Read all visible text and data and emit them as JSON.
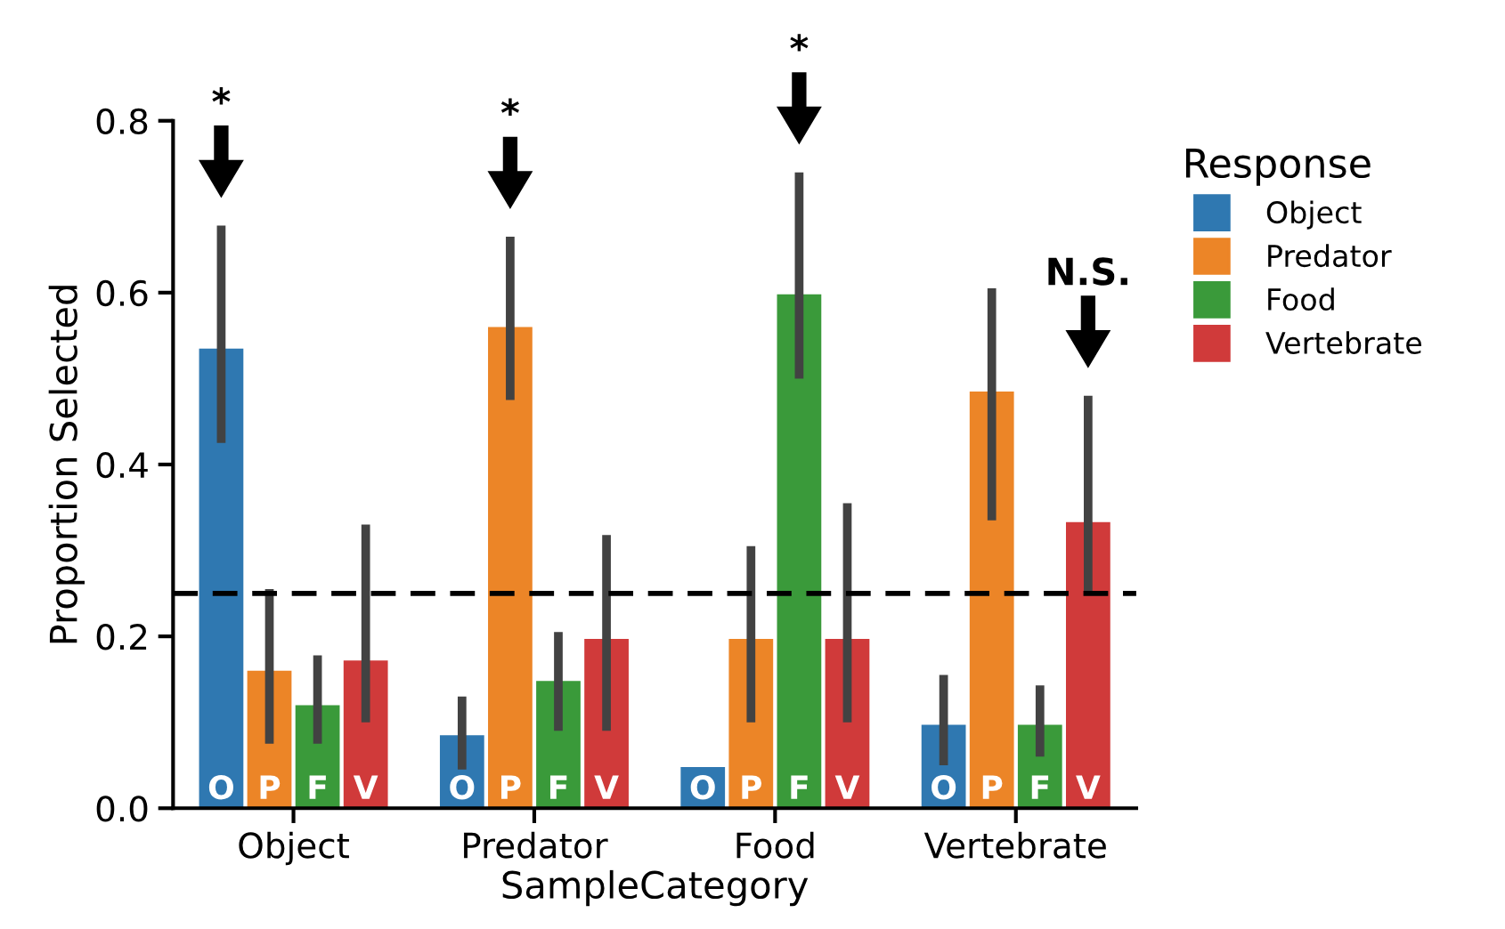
{
  "chart_data": {
    "type": "bar",
    "xlabel": "SampleCategory",
    "ylabel": "Proportion Selected",
    "legend_title": "Response",
    "legend": "right",
    "categories": [
      "Object",
      "Predator",
      "Food",
      "Vertebrate"
    ],
    "series": [
      {
        "name": "Object",
        "color": "#2f78b1",
        "values": [
          0.535,
          0.085,
          0.048,
          0.097
        ],
        "errors": [
          [
            0.425,
            0.678
          ],
          [
            0.045,
            0.13
          ],
          null,
          [
            0.05,
            0.155
          ]
        ],
        "value_labels": [
          "O",
          "O",
          "O",
          "O"
        ]
      },
      {
        "name": "Predator",
        "color": "#ec8527",
        "values": [
          0.16,
          0.56,
          0.197,
          0.485
        ],
        "errors": [
          [
            0.075,
            0.255
          ],
          [
            0.475,
            0.665
          ],
          [
            0.1,
            0.305
          ],
          [
            0.335,
            0.605
          ]
        ],
        "value_labels": [
          "P",
          "P",
          "P",
          "P"
        ]
      },
      {
        "name": "Food",
        "color": "#3a9a3a",
        "values": [
          0.12,
          0.148,
          0.598,
          0.097
        ],
        "errors": [
          [
            0.075,
            0.178
          ],
          [
            0.09,
            0.205
          ],
          [
            0.5,
            0.74
          ],
          [
            0.06,
            0.143
          ]
        ],
        "value_labels": [
          "F",
          "F",
          "F",
          "F"
        ]
      },
      {
        "name": "Vertebrate",
        "color": "#d03a3a",
        "values": [
          0.172,
          0.197,
          0.197,
          0.333
        ],
        "errors": [
          [
            0.1,
            0.33
          ],
          [
            0.09,
            0.318
          ],
          [
            0.1,
            0.355
          ],
          [
            0.25,
            0.48
          ]
        ],
        "value_labels": [
          "V",
          "V",
          "V",
          "V"
        ]
      }
    ],
    "ylim": [
      0,
      0.8
    ],
    "yticks": [
      {
        "value": 0,
        "label": "0.0"
      },
      0.2,
      0.4,
      0.6,
      0.8
    ],
    "ref_lines": [
      {
        "axis": "y",
        "value": 0.25,
        "color": "#000000",
        "line_style": "dashed"
      }
    ],
    "annotations": [
      "*",
      "*",
      "*",
      "N.S."
    ]
  }
}
